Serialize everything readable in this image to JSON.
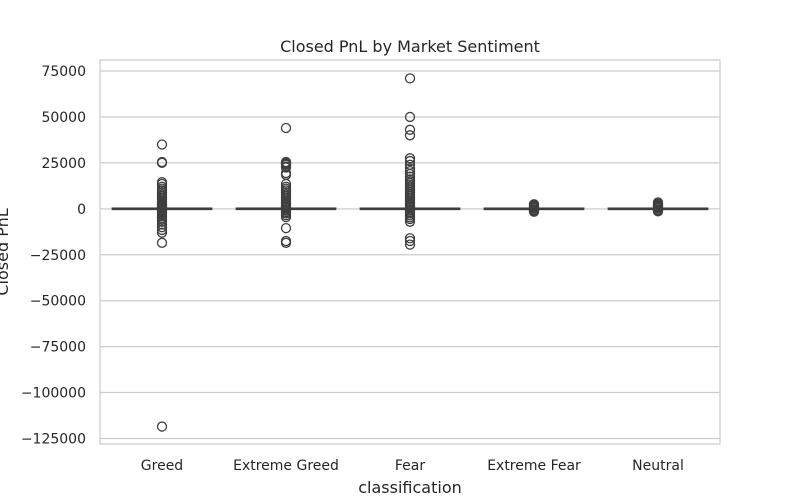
{
  "chart_data": {
    "type": "box",
    "title": "Closed PnL by Market Sentiment",
    "xlabel": "classification",
    "ylabel": "Closed PnL",
    "ylim": [
      -128000,
      81000
    ],
    "grid": true,
    "colors": {
      "box_face": "#ffffff",
      "stroke": "#3f3f3f",
      "grid": "#cccccc",
      "frame": "#cccccc"
    },
    "y_ticks": [
      {
        "value": 75000,
        "label": "75000"
      },
      {
        "value": 50000,
        "label": "50000"
      },
      {
        "value": 25000,
        "label": "25000"
      },
      {
        "value": 0,
        "label": "0"
      },
      {
        "value": -25000,
        "label": "−25000"
      },
      {
        "value": -50000,
        "label": "−50000"
      },
      {
        "value": -75000,
        "label": "−75000"
      },
      {
        "value": -100000,
        "label": "−100000"
      },
      {
        "value": -125000,
        "label": "−125000"
      }
    ],
    "categories": [
      "Greed",
      "Extreme Greed",
      "Fear",
      "Extreme Fear",
      "Neutral"
    ],
    "boxes": [
      {
        "category": "Greed",
        "q1": 0,
        "median": 0,
        "q3": 15,
        "whisker_low": -40,
        "whisker_high": 60,
        "outliers": [
          35000,
          25500,
          25000,
          14500,
          13500,
          12000,
          11000,
          10000,
          9000,
          8000,
          7000,
          6000,
          5000,
          4200,
          3500,
          2800,
          2200,
          1600,
          1000,
          600,
          300,
          -300,
          -700,
          -1200,
          -1800,
          -2500,
          -3200,
          -4000,
          -5000,
          -6000,
          -7000,
          -8500,
          -10000,
          -11500,
          -13000,
          -18500,
          -118500
        ]
      },
      {
        "category": "Extreme Greed",
        "q1": 0,
        "median": 0,
        "q3": 30,
        "whisker_low": -60,
        "whisker_high": 90,
        "outliers": [
          44000,
          25500,
          25000,
          24500,
          24000,
          23000,
          22500,
          19500,
          18500,
          13500,
          12000,
          11000,
          10000,
          9000,
          8000,
          7000,
          6000,
          5000,
          4200,
          3500,
          2800,
          2000,
          1400,
          800,
          400,
          -500,
          -1000,
          -1800,
          -2500,
          -3500,
          -4500,
          -10500,
          -17500,
          -18500
        ]
      },
      {
        "category": "Fear",
        "q1": 0,
        "median": 0,
        "q3": 10,
        "whisker_low": -30,
        "whisker_high": 40,
        "outliers": [
          71000,
          50000,
          43000,
          40000,
          27500,
          26000,
          24000,
          22000,
          20500,
          19000,
          17500,
          16000,
          15000,
          14000,
          13000,
          12000,
          11000,
          10000,
          9000,
          8000,
          7000,
          6000,
          5000,
          4200,
          3500,
          2800,
          2000,
          1400,
          800,
          400,
          -500,
          -1000,
          -1800,
          -2500,
          -3500,
          -4500,
          -5500,
          -7000,
          -16000,
          -17500,
          -19500
        ]
      },
      {
        "category": "Extreme Fear",
        "q1": 0,
        "median": 0,
        "q3": 5,
        "whisker_low": -20,
        "whisker_high": 25,
        "outliers": [
          2500,
          2000,
          1500,
          1100,
          700,
          400,
          -400,
          -700,
          -1000,
          -1300,
          -1600
        ]
      },
      {
        "category": "Neutral",
        "q1": 0,
        "median": 0,
        "q3": 5,
        "whisker_low": -20,
        "whisker_high": 25,
        "outliers": [
          3500,
          2800,
          2200,
          1700,
          1200,
          800,
          400,
          -400,
          -700,
          -1000,
          -1400
        ]
      }
    ]
  }
}
